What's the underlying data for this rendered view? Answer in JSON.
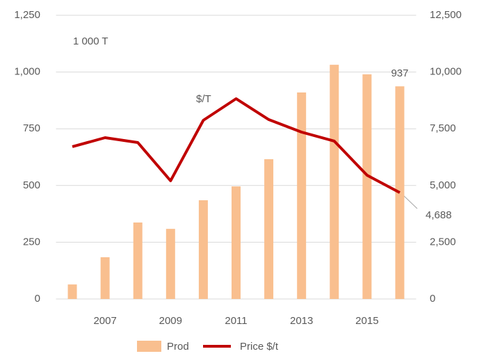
{
  "chart_data": {
    "type": "bar-line",
    "annotations": [
      "1 000 T",
      "$/T"
    ],
    "categories": [
      null,
      "2007",
      null,
      "2009",
      null,
      "2011",
      null,
      "2013",
      null,
      "2015",
      null
    ],
    "series": [
      {
        "name": "Prod",
        "type": "bar",
        "axis": "y",
        "color": "#f9bf8f",
        "values": [
          64,
          184,
          337,
          309,
          435,
          496,
          616,
          910,
          1032,
          990,
          937
        ],
        "value_labels": [
          null,
          null,
          null,
          null,
          null,
          null,
          null,
          null,
          null,
          null,
          "937"
        ]
      },
      {
        "name": "Price $/t",
        "type": "line",
        "axis": "y2",
        "color": "#c00000",
        "values": [
          6710,
          7108,
          6893,
          5208,
          7874,
          8824,
          7904,
          7353,
          6955,
          5453,
          4688
        ],
        "value_labels": [
          null,
          null,
          null,
          null,
          null,
          null,
          null,
          null,
          null,
          null,
          "4,688"
        ]
      }
    ],
    "ylim": [
      0,
      1250
    ],
    "yticks": [
      0,
      250,
      500,
      750,
      {
        "value": 1000,
        "label": "1,000"
      },
      {
        "value": 1250,
        "label": "1,250"
      }
    ],
    "y2lim": [
      0,
      12500
    ],
    "y2ticks": [
      0,
      {
        "value": 2500,
        "label": "2,500"
      },
      {
        "value": 5000,
        "label": "5,000"
      },
      {
        "value": 7500,
        "label": "7,500"
      },
      {
        "value": 10000,
        "label": "10,000"
      },
      {
        "value": 12500,
        "label": "12,500"
      }
    ],
    "grid": true,
    "legend": "bottom"
  }
}
